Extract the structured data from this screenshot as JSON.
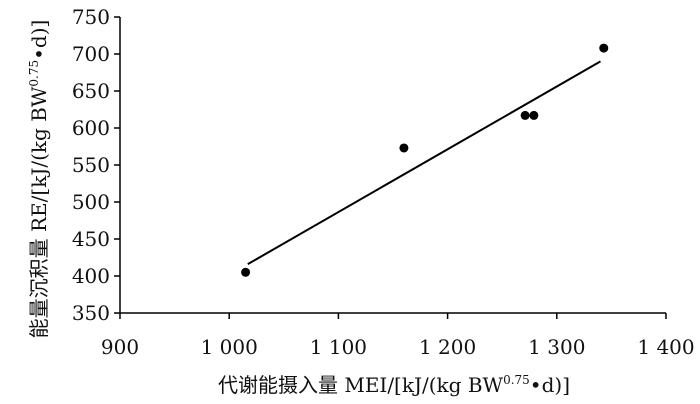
{
  "chart_data": {
    "type": "scatter",
    "xlabel_main": "代谢能摄入量 MEI/[kJ/(kg BW",
    "xlabel_sup": "0.75",
    "xlabel_tail": "•d)]",
    "ylabel_main": "能量沉积量 RE/[kJ/(kg BW",
    "ylabel_sup": "0.75",
    "ylabel_tail": "•d)]",
    "xlim": [
      900,
      1400
    ],
    "ylim": [
      350,
      750
    ],
    "x_ticks": [
      {
        "value": 900,
        "label": "900"
      },
      {
        "value": 1000,
        "label": "1 000"
      },
      {
        "value": 1100,
        "label": "1 100"
      },
      {
        "value": 1200,
        "label": "1 200"
      },
      {
        "value": 1300,
        "label": "1 300"
      },
      {
        "value": 1400,
        "label": "1 400"
      }
    ],
    "y_ticks": [
      {
        "value": 350,
        "label": "350"
      },
      {
        "value": 400,
        "label": "400"
      },
      {
        "value": 450,
        "label": "450"
      },
      {
        "value": 500,
        "label": "500"
      },
      {
        "value": 550,
        "label": "550"
      },
      {
        "value": 600,
        "label": "600"
      },
      {
        "value": 650,
        "label": "650"
      },
      {
        "value": 700,
        "label": "700"
      },
      {
        "value": 750,
        "label": "750"
      }
    ],
    "points": [
      {
        "x": 1015,
        "y": 405
      },
      {
        "x": 1160,
        "y": 573
      },
      {
        "x": 1271,
        "y": 617
      },
      {
        "x": 1279,
        "y": 617
      },
      {
        "x": 1343,
        "y": 708
      }
    ],
    "fit_line": {
      "x": [
        1017,
        1340
      ],
      "y": [
        416,
        690
      ]
    },
    "grid": false,
    "colors": {
      "marks": "#000000",
      "axis": "#000000",
      "text": "#111111"
    }
  }
}
